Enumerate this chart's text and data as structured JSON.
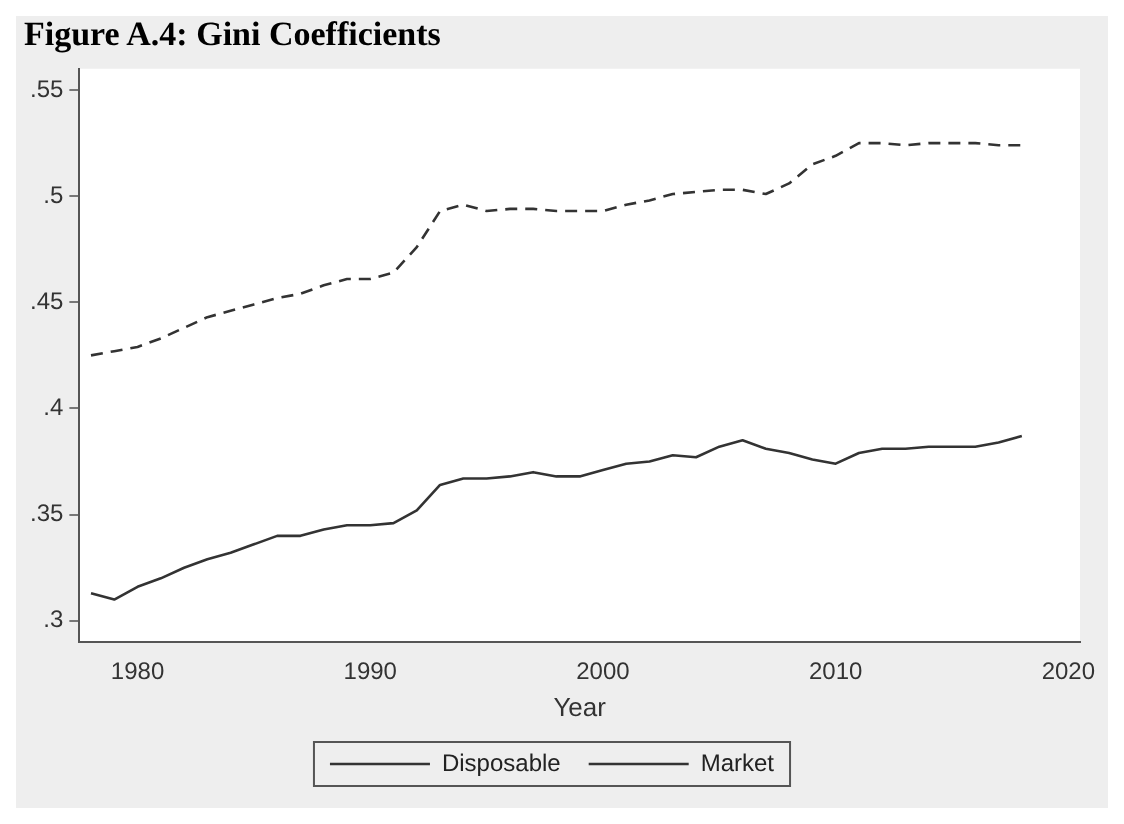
{
  "chart_data": {
    "type": "line",
    "title": "Figure A.4: Gini Coefficients",
    "xlabel": "Year",
    "x": [
      1978,
      1979,
      1980,
      1981,
      1982,
      1983,
      1984,
      1985,
      1986,
      1987,
      1988,
      1989,
      1990,
      1991,
      1992,
      1993,
      1994,
      1995,
      1996,
      1997,
      1998,
      1999,
      2000,
      2001,
      2002,
      2003,
      2004,
      2005,
      2006,
      2007,
      2008,
      2009,
      2010,
      2011,
      2012,
      2013,
      2014,
      2015,
      2016,
      2017,
      2018
    ],
    "series": [
      {
        "name": "Disposable",
        "color": "#333333",
        "line_style": "solid",
        "values": [
          0.313,
          0.31,
          0.316,
          0.32,
          0.325,
          0.329,
          0.332,
          0.336,
          0.34,
          0.34,
          0.343,
          0.345,
          0.345,
          0.346,
          0.352,
          0.364,
          0.367,
          0.367,
          0.368,
          0.37,
          0.368,
          0.368,
          0.371,
          0.374,
          0.375,
          0.378,
          0.377,
          0.382,
          0.385,
          0.381,
          0.379,
          0.376,
          0.374,
          0.379,
          0.381,
          0.381,
          0.382,
          0.382,
          0.382,
          0.384,
          0.387
        ]
      },
      {
        "name": "Market",
        "color": "#333333",
        "line_style": "dashed",
        "values": [
          0.425,
          0.427,
          0.429,
          0.433,
          0.438,
          0.443,
          0.446,
          0.449,
          0.452,
          0.454,
          0.458,
          0.461,
          0.461,
          0.464,
          0.476,
          0.493,
          0.496,
          0.493,
          0.494,
          0.494,
          0.493,
          0.493,
          0.493,
          0.496,
          0.498,
          0.501,
          0.502,
          0.503,
          0.503,
          0.501,
          0.506,
          0.515,
          0.519,
          0.525,
          0.525,
          0.524,
          0.525,
          0.525,
          0.525,
          0.524,
          0.524
        ]
      }
    ],
    "xlim": [
      1977.5,
      2020.5
    ],
    "xticks": [
      1980,
      1990,
      2000,
      2010,
      2020
    ],
    "ylim": [
      0.29,
      0.56
    ],
    "yticks": [
      {
        "value": 0.3,
        "label": ".3"
      },
      {
        "value": 0.35,
        "label": ".35"
      },
      {
        "value": 0.4,
        "label": ".4"
      },
      {
        "value": 0.45,
        "label": ".45"
      },
      {
        "value": 0.5,
        "label": ".5"
      },
      {
        "value": 0.55,
        "label": ".55"
      }
    ],
    "grid": false,
    "legend": "bottom",
    "marker": "none"
  }
}
